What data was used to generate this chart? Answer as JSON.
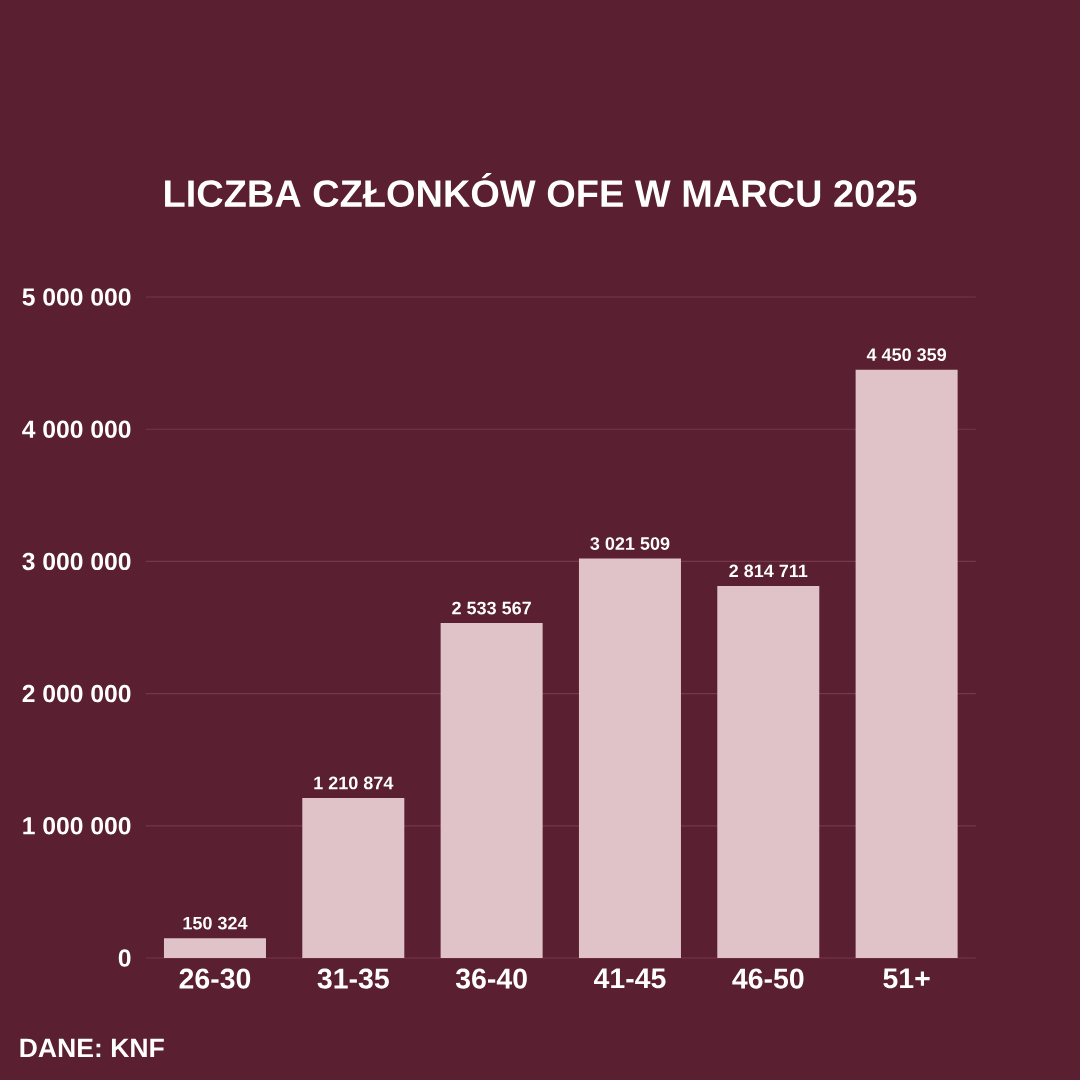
{
  "chart_data": {
    "type": "bar",
    "title": "LICZBA CZŁONKÓW OFE W MARCU 2025",
    "categories": [
      "26-30",
      "31-35",
      "36-40",
      "41-45",
      "46-50",
      "51+"
    ],
    "values": [
      150324,
      1210874,
      2533567,
      3021509,
      2814711,
      4450359
    ],
    "value_labels": [
      "150 324",
      "1 210 874",
      "2 533 567",
      "3 021 509",
      "2 814 711",
      "4 450 359"
    ],
    "color": "#e0c3c9",
    "ylim": [
      0,
      5000000
    ],
    "yticks": [
      {
        "value": 0,
        "label": "0"
      },
      {
        "value": 1000000,
        "label": "1 000 000"
      },
      {
        "value": 2000000,
        "label": "2 000 000"
      },
      {
        "value": 3000000,
        "label": "3 000 000"
      },
      {
        "value": 4000000,
        "label": "4 000 000"
      },
      {
        "value": 5000000,
        "label": "5 000 000"
      }
    ],
    "grid": "y",
    "annotations": [
      "DANE: KNF"
    ]
  }
}
